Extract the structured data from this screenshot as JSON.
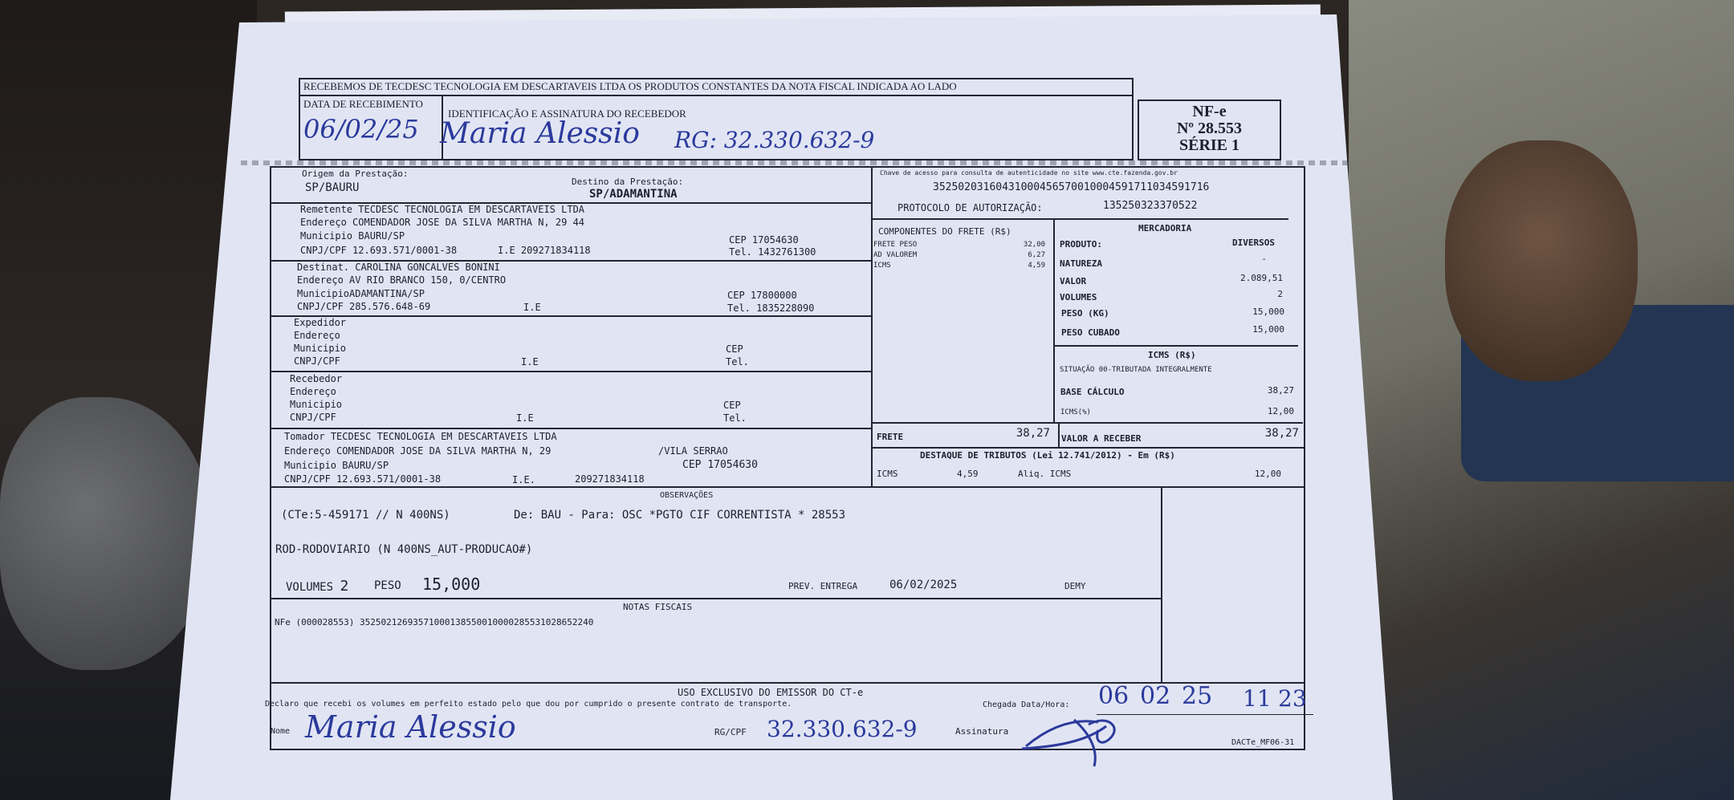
{
  "canhoto": {
    "header": "RECEBEMOS DE TECDESC TECNOLOGIA EM DESCARTAVEIS LTDA OS PRODUTOS CONSTANTES DA NOTA FISCAL INDICADA AO LADO",
    "data_label": "DATA DE RECEBIMENTO",
    "data_value": "06/02/25",
    "ident_label": "IDENTIFICAÇÃO E ASSINATURA DO RECEBEDOR",
    "signature": "Maria Alessio",
    "rg": "RG: 32.330.632-9",
    "nfe": "NF-e",
    "numero": "Nº 28.553",
    "serie": "SÉRIE 1"
  },
  "origem": {
    "label": "Origem da Prestação:",
    "value": "SP/BAURU"
  },
  "destino": {
    "label": "Destino da Prestação:",
    "value": "SP/ADAMANTINA"
  },
  "remetente": {
    "label": "Remetente",
    "nome": "TECDESC TECNOLOGIA EM DESCARTAVEIS LTDA",
    "end_label": "Endereço",
    "endereco": "COMENDADOR JOSE DA SILVA MARTHA N, 29 44",
    "mun_label": "Municipio",
    "municipio": "BAURU/SP",
    "cnpj_label": "CNPJ/CPF",
    "cnpj": "12.693.571/0001-38",
    "ie_label": "I.E",
    "ie": "209271834118",
    "cep_label": "CEP",
    "cep": "17054630",
    "tel_label": "Tel.",
    "tel": "1432761300"
  },
  "destinatario": {
    "label": "Destinat.",
    "nome": "CAROLINA GONCALVES BONINI",
    "end_label": "Endereço",
    "endereco": "AV RIO BRANCO 150, 0/CENTRO",
    "mun_label": "Municipio",
    "municipio": "ADAMANTINA/SP",
    "cnpj_label": "CNPJ/CPF",
    "cnpj": "285.576.648-69",
    "ie_label": "I.E",
    "cep_label": "CEP",
    "cep": "17800000",
    "tel_label": "Tel.",
    "tel": "1835228090"
  },
  "expedidor": {
    "label": "Expedidor",
    "end_label": "Endereço",
    "mun_label": "Municipio",
    "cnpj_label": "CNPJ/CPF",
    "ie_label": "I.E",
    "cep_label": "CEP",
    "tel_label": "Tel."
  },
  "recebedor": {
    "label": "Recebedor",
    "end_label": "Endereço",
    "mun_label": "Municipio",
    "cnpj_label": "CNPJ/CPF",
    "ie_label": "I.E",
    "cep_label": "CEP",
    "tel_label": "Tel."
  },
  "tomador": {
    "label": "Tomador",
    "nome": "TECDESC TECNOLOGIA EM DESCARTAVEIS LTDA",
    "end_label": "Endereço",
    "endereco": "COMENDADOR JOSE DA SILVA MARTHA N, 29",
    "bairro": "/VILA SERRAO",
    "mun_label": "Municipio",
    "municipio": "BAURU/SP",
    "cep_label": "CEP",
    "cep": "17054630",
    "cnpj_label": "CNPJ/CPF",
    "cnpj": "12.693.571/0001-38",
    "ie_label": "I.E.",
    "ie": "209271834118"
  },
  "chave": {
    "label": "Chave de acesso para consulta de autenticidade no site www.cte.fazenda.gov.br",
    "value": "35250203160431000456570010004591711034591716",
    "protocolo_label": "PROTOCOLO DE AUTORIZAÇÃO:",
    "protocolo": "135250323370522"
  },
  "componentes": {
    "title": "COMPONENTES DO FRETE (R$)",
    "items": [
      {
        "label": "FRETE PESO",
        "value": "32,00"
      },
      {
        "label": "AD VALOREM",
        "value": "6,27"
      },
      {
        "label": "ICMS",
        "value": "4,59"
      }
    ]
  },
  "mercadoria": {
    "title": "MERCADORIA",
    "produto_label": "PRODUTO:",
    "produto": "DIVERSOS",
    "natureza_label": "NATUREZA",
    "natureza": "-",
    "valor_label": "VALOR",
    "valor": "2.089,51",
    "volumes_label": "VOLUMES",
    "volumes": "2",
    "peso_label": "PESO (KG)",
    "peso": "15,000",
    "cubado_label": "PESO CUBADO",
    "cubado": "15,000"
  },
  "icms": {
    "title": "ICMS (R$)",
    "situacao": "SITUAÇÃO 00-TRIBUTADA INTEGRALMENTE",
    "base_label": "BASE CÁLCULO",
    "base": "38,27",
    "aliq_label": "ICMS(%)",
    "aliq": "12,00"
  },
  "totais": {
    "frete_label": "FRETE",
    "frete": "38,27",
    "receber_label": "VALOR A RECEBER",
    "receber": "38,27"
  },
  "destaque": {
    "title": "DESTAQUE DE TRIBUTOS (Lei 12.741/2012) - Em (R$)",
    "icms_label": "ICMS",
    "icms": "4,59",
    "aliq_label": "Aliq. ICMS",
    "aliq": "12,00"
  },
  "observacoes": {
    "title": "OBSERVAÇÕES",
    "line1a": "(CTe:5-459171 // N 400NS)",
    "line1b": "De: BAU - Para: OSC *PGTO CIF CORRENTISTA * 28553",
    "line2": "ROD-RODOVIARIO (N 400NS_AUT-PRODUCAO#)",
    "volumes_label": "VOLUMES",
    "volumes": "2",
    "peso_label": "PESO",
    "peso": "15,000",
    "prev_label": "PREV. ENTREGA",
    "prev": "06/02/2025",
    "demy": "DEMY"
  },
  "notas": {
    "title": "NOTAS FISCAIS",
    "item": "NFe (000028553) 35250212693571000138550010000285531028652240"
  },
  "uso": {
    "title": "USO EXCLUSIVO DO EMISSOR DO CT-e",
    "declaro": "Declaro que recebi os volumes em perfeito estado pelo que dou por cumprido o presente contrato de transporte.",
    "chegada_label": "Chegada Data/Hora:",
    "dia": "06",
    "mes": "02",
    "ano": "25",
    "hora": "11",
    "min": "23",
    "nome_label": "Nome",
    "nome": "Maria Alessio",
    "rg_label": "RG/CPF",
    "rg": "32.330.632-9",
    "assinatura_label": "Assinatura",
    "rodape": "DACTe_MF06-31"
  }
}
